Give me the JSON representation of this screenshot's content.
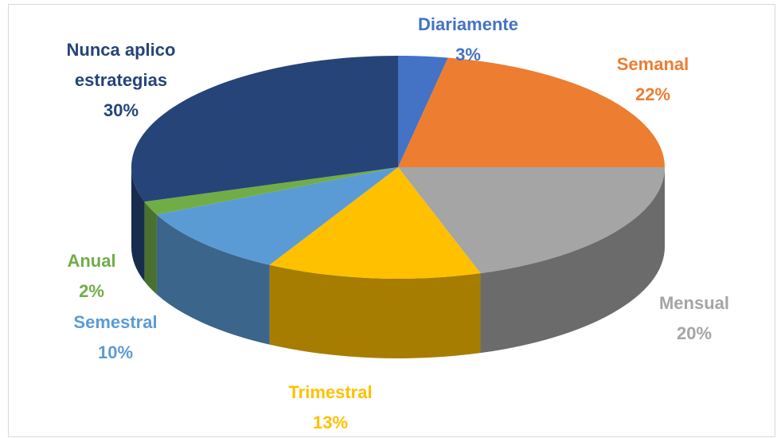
{
  "chart_data": {
    "type": "pie",
    "categories": [
      "Diariamente",
      "Semanal",
      "Mensual",
      "Trimestral",
      "Semestral",
      "Anual",
      "Nunca aplico estrategias"
    ],
    "values": [
      3,
      22,
      20,
      13,
      10,
      2,
      30
    ],
    "value_labels": [
      "3%",
      "22%",
      "20%",
      "13%",
      "10%",
      "2%",
      "30%"
    ],
    "colors": [
      "#4472c4",
      "#ed7d31",
      "#a5a5a5",
      "#ffc000",
      "#5b9bd5",
      "#70ad47",
      "#264478"
    ]
  }
}
